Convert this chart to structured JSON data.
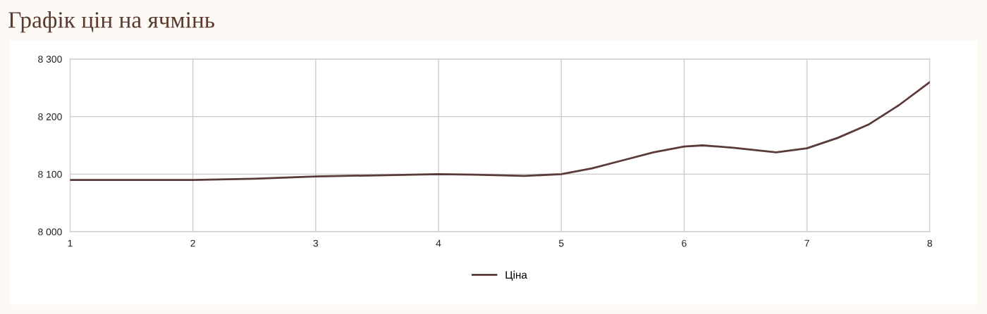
{
  "chart_data": {
    "type": "line",
    "title": "Графік цін на ячмінь",
    "x": [
      1,
      2,
      2.5,
      3,
      3.5,
      4,
      4.3,
      4.7,
      5,
      5.25,
      5.5,
      5.75,
      6,
      6.15,
      6.4,
      6.75,
      7,
      7.25,
      7.5,
      7.75,
      8
    ],
    "series": [
      {
        "name": "Ціна",
        "color": "#5b3a3a",
        "values": [
          8090,
          8090,
          8092,
          8096,
          8098,
          8100,
          8099,
          8097,
          8100,
          8110,
          8124,
          8138,
          8148,
          8150,
          8146,
          8138,
          8145,
          8163,
          8186,
          8220,
          8260
        ]
      }
    ],
    "xlim": [
      1,
      8
    ],
    "xticks": [
      1,
      2,
      3,
      4,
      5,
      6,
      7,
      8
    ],
    "ylim": [
      8000,
      8300
    ],
    "yticks": [
      {
        "value": 8000,
        "label": "8 000"
      },
      {
        "value": 8100,
        "label": "8 100"
      },
      {
        "value": 8200,
        "label": "8 200"
      },
      {
        "value": 8300,
        "label": "8 300"
      }
    ],
    "grid": true,
    "legend": "bottom",
    "marker": "none",
    "line_style": "solid"
  }
}
